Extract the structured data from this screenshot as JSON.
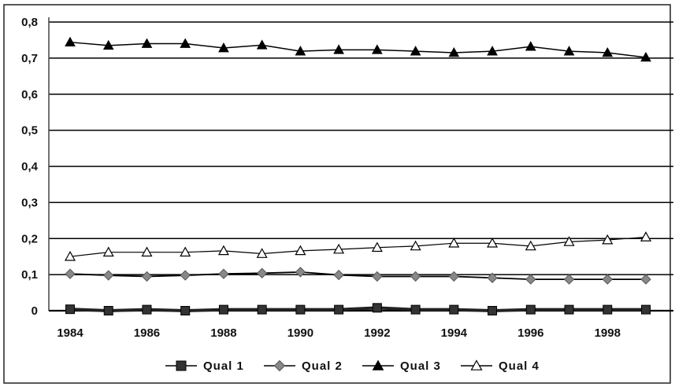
{
  "chart_data": {
    "type": "line",
    "x": [
      1984,
      1985,
      1986,
      1987,
      1988,
      1989,
      1990,
      1991,
      1992,
      1993,
      1994,
      1995,
      1996,
      1997,
      1998,
      1999
    ],
    "xticks": [
      "1984",
      "1986",
      "1988",
      "1990",
      "1992",
      "1994",
      "1996",
      "1998"
    ],
    "yticks": [
      "0",
      "0,1",
      "0,2",
      "0,3",
      "0,4",
      "0,5",
      "0,6",
      "0,7",
      "0,8"
    ],
    "xlim": [
      1984,
      1999
    ],
    "ylim": [
      0,
      0.8
    ],
    "grid": true,
    "legend_position": "bottom",
    "series": [
      {
        "name": "Qual 1",
        "marker": "square",
        "color": "#333333",
        "values": [
          0.004,
          0.0,
          0.003,
          0.0,
          0.003,
          0.003,
          0.003,
          0.003,
          0.008,
          0.003,
          0.003,
          0.0,
          0.003,
          0.003,
          0.003,
          0.003
        ]
      },
      {
        "name": "Qual 2",
        "marker": "diamond",
        "color": "#888888",
        "values": [
          0.102,
          0.098,
          0.095,
          0.098,
          0.102,
          0.104,
          0.107,
          0.099,
          0.095,
          0.095,
          0.095,
          0.091,
          0.087,
          0.087,
          0.087,
          0.087
        ]
      },
      {
        "name": "Qual 3",
        "marker": "triangle-filled",
        "color": "#000000",
        "values": [
          0.744,
          0.735,
          0.74,
          0.74,
          0.728,
          0.736,
          0.719,
          0.723,
          0.723,
          0.719,
          0.715,
          0.719,
          0.732,
          0.719,
          0.715,
          0.702
        ]
      },
      {
        "name": "Qual 4",
        "marker": "triangle-open",
        "color": "#000000",
        "values": [
          0.15,
          0.162,
          0.162,
          0.162,
          0.166,
          0.158,
          0.166,
          0.17,
          0.175,
          0.179,
          0.187,
          0.187,
          0.179,
          0.191,
          0.196,
          0.204
        ]
      }
    ]
  }
}
